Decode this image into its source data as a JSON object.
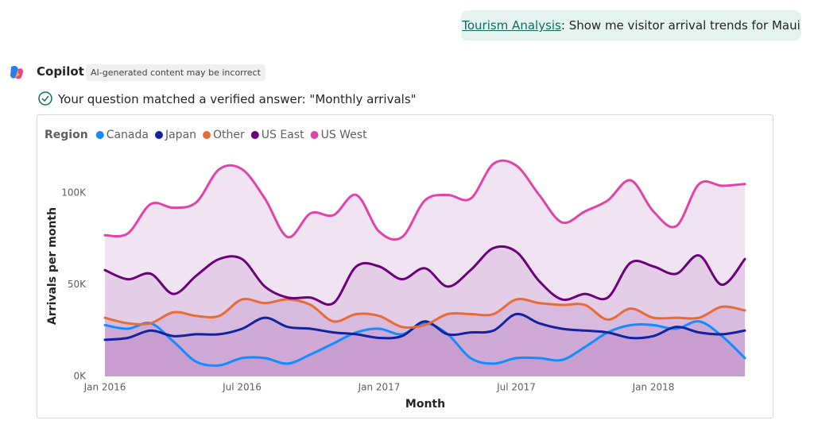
{
  "user_message": {
    "link": "Tourism Analysis",
    "text": ": Show me visitor arrival trends for Maui"
  },
  "assistant": {
    "name": "Copilot",
    "disclaimer": "AI-generated content may be incorrect",
    "verified_note": "Your question matched a verified answer: \"Monthly arrivals\""
  },
  "chart_data": {
    "type": "line",
    "area": true,
    "legend_title": "Region",
    "x_label": "Month",
    "y_label": "Arrivals per month",
    "categories": [
      "Jan 2016",
      null,
      null,
      null,
      null,
      null,
      "Jul 2016",
      null,
      null,
      null,
      null,
      null,
      "Jan 2017",
      null,
      null,
      null,
      null,
      null,
      "Jul 2017",
      null,
      null,
      null,
      null,
      null,
      "Jan 2018",
      null,
      null,
      null,
      null
    ],
    "ylim": [
      0,
      120000
    ],
    "yticks": [
      {
        "value": 0,
        "label": "0K"
      },
      {
        "value": 50000,
        "label": "50K"
      },
      {
        "value": 100000,
        "label": "100K"
      }
    ],
    "series": [
      {
        "name": "Canada",
        "color": "#118dff",
        "values": [
          28000,
          26000,
          29000,
          19000,
          8000,
          6000,
          10000,
          10000,
          7000,
          12000,
          18000,
          24000,
          26000,
          23000,
          29000,
          23000,
          10000,
          7000,
          10000,
          10000,
          9000,
          16000,
          24000,
          28000,
          28000,
          26000,
          30000,
          22000,
          10000
        ]
      },
      {
        "name": "Japan",
        "color": "#12239e",
        "values": [
          20000,
          21000,
          25000,
          22000,
          23000,
          23000,
          26000,
          32000,
          27000,
          26000,
          24000,
          23000,
          21000,
          22000,
          30000,
          23000,
          24000,
          25000,
          34000,
          29000,
          26000,
          25000,
          24000,
          21000,
          22000,
          27000,
          24000,
          23000,
          25000
        ]
      },
      {
        "name": "Other",
        "color": "#e66c37",
        "values": [
          32000,
          29000,
          29000,
          35000,
          33000,
          33000,
          42000,
          40000,
          42000,
          39000,
          30000,
          34000,
          33000,
          27000,
          28000,
          34000,
          34000,
          34000,
          42000,
          40000,
          39000,
          39000,
          31000,
          37000,
          32000,
          32000,
          32000,
          38000,
          36000
        ]
      },
      {
        "name": "US East",
        "color": "#6b007b",
        "values": [
          58000,
          53000,
          56000,
          45000,
          55000,
          64000,
          64000,
          49000,
          43000,
          43000,
          40000,
          60000,
          60000,
          53000,
          59000,
          49000,
          58000,
          70000,
          68000,
          52000,
          42000,
          45000,
          43000,
          62000,
          60000,
          56000,
          66000,
          50000,
          64000
        ]
      },
      {
        "name": "US West",
        "color": "#e044a7",
        "values": [
          77000,
          78000,
          94000,
          92000,
          95000,
          113000,
          113000,
          97000,
          76000,
          89000,
          88000,
          99000,
          79000,
          76000,
          96000,
          99000,
          97000,
          116000,
          115000,
          99000,
          84000,
          90000,
          96000,
          107000,
          90000,
          82000,
          105000,
          104000,
          105000
        ]
      }
    ]
  }
}
